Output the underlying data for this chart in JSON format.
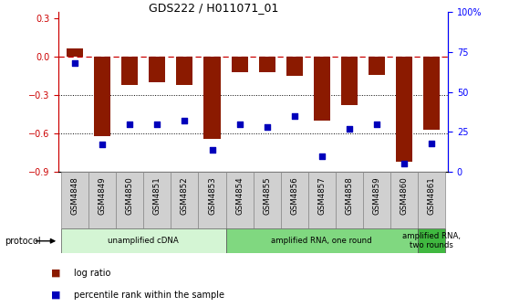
{
  "title": "GDS222 / H011071_01",
  "samples": [
    "GSM4848",
    "GSM4849",
    "GSM4850",
    "GSM4851",
    "GSM4852",
    "GSM4853",
    "GSM4854",
    "GSM4855",
    "GSM4856",
    "GSM4857",
    "GSM4858",
    "GSM4859",
    "GSM4860",
    "GSM4861"
  ],
  "log_ratio": [
    0.07,
    -0.62,
    -0.22,
    -0.2,
    -0.22,
    -0.64,
    -0.12,
    -0.12,
    -0.15,
    -0.5,
    -0.38,
    -0.14,
    -0.82,
    -0.57
  ],
  "percentile_rank": [
    68,
    17,
    30,
    30,
    32,
    14,
    30,
    28,
    35,
    10,
    27,
    30,
    5,
    18
  ],
  "bar_color": "#8B1A00",
  "dot_color": "#0000BB",
  "ylim_left": [
    -0.9,
    0.35
  ],
  "ylim_right": [
    0,
    100
  ],
  "yticks_left": [
    -0.9,
    -0.6,
    -0.3,
    0.0,
    0.3
  ],
  "yticks_right": [
    0,
    25,
    50,
    75,
    100
  ],
  "ytick_labels_right": [
    "0",
    "25",
    "50",
    "75",
    "100%"
  ],
  "hline_color": "#CC0000",
  "gridline_color": "#000000",
  "background_color": "#ffffff",
  "legend_bar_label": "log ratio",
  "legend_dot_label": "percentile rank within the sample",
  "protocol_groups": [
    {
      "start": 0,
      "end": 5,
      "color": "#d4f5d4",
      "label": "unamplified cDNA"
    },
    {
      "start": 6,
      "end": 12,
      "color": "#80d880",
      "label": "amplified RNA, one round"
    },
    {
      "start": 13,
      "end": 13,
      "color": "#40b840",
      "label": "amplified RNA,\ntwo rounds"
    }
  ],
  "cell_color": "#d0d0d0",
  "cell_border_color": "#888888"
}
